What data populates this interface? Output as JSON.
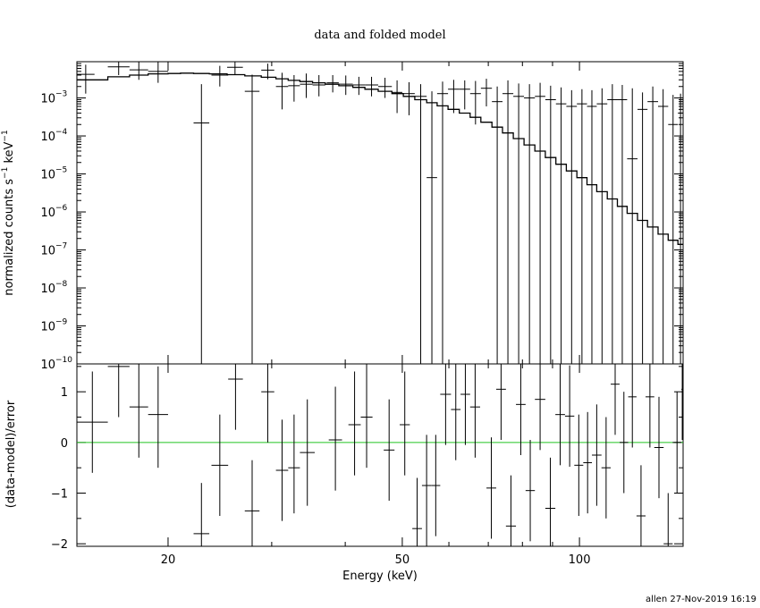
{
  "chart_data": [
    {
      "type": "scatter",
      "title": "data and folded model",
      "ylabel": "normalized counts s^-1 keV^-1",
      "yscale": "log",
      "xscale": "log",
      "xlim": [
        14.0,
        150.0
      ],
      "ylim": [
        1e-10,
        0.009
      ],
      "y_ticks": [
        {
          "value": 1e-10,
          "label": "10",
          "exp": "−10"
        },
        {
          "value": 1e-09,
          "label": "10",
          "exp": "−9"
        },
        {
          "value": 1e-08,
          "label": "10",
          "exp": "−8"
        },
        {
          "value": 1e-07,
          "label": "10",
          "exp": "−7"
        },
        {
          "value": 1e-06,
          "label": "10",
          "exp": "−6"
        },
        {
          "value": 1e-05,
          "label": "10",
          "exp": "−5"
        },
        {
          "value": 0.0001,
          "label": "10",
          "exp": "−4"
        },
        {
          "value": 0.001,
          "label": "10",
          "exp": "−3"
        }
      ],
      "series": [
        {
          "kind": "data_with_errors",
          "points": [
            {
              "x0": 14.0,
              "x1": 15.0,
              "y": 0.0042,
              "ylo": 0.0013,
              "yhi": 0.0075
            },
            {
              "x0": 15.8,
              "x1": 17.2,
              "y": 0.0066,
              "ylo": 0.004,
              "yhi": 0.009
            },
            {
              "x0": 17.2,
              "x1": 18.5,
              "y": 0.0055,
              "ylo": 0.003,
              "yhi": 0.009
            },
            {
              "x0": 18.5,
              "x1": 20.0,
              "y": 0.005,
              "ylo": 0.0025,
              "yhi": 0.009
            },
            {
              "x0": 22.1,
              "x1": 23.5,
              "y": 0.00022,
              "ylo": 1e-10,
              "yhi": 0.0023
            },
            {
              "x0": 23.7,
              "x1": 25.3,
              "y": 0.004,
              "ylo": 0.002,
              "yhi": 0.007
            },
            {
              "x0": 25.2,
              "x1": 26.8,
              "y": 0.0064,
              "ylo": 0.004,
              "yhi": 0.009
            },
            {
              "x0": 27.0,
              "x1": 28.6,
              "y": 0.0015,
              "ylo": 1e-10,
              "yhi": 0.0041
            },
            {
              "x0": 28.8,
              "x1": 30.3,
              "y": 0.0054,
              "ylo": 0.0031,
              "yhi": 0.008
            },
            {
              "x0": 30.5,
              "x1": 32.0,
              "y": 0.002,
              "ylo": 0.0005,
              "yhi": 0.0046
            },
            {
              "x0": 32.0,
              "x1": 33.5,
              "y": 0.0021,
              "ylo": 0.0008,
              "yhi": 0.004
            },
            {
              "x0": 33.5,
              "x1": 35.2,
              "y": 0.0023,
              "ylo": 0.001,
              "yhi": 0.0044
            },
            {
              "x0": 35.2,
              "x1": 37.0,
              "y": 0.0022,
              "ylo": 0.0011,
              "yhi": 0.004
            },
            {
              "x0": 37.2,
              "x1": 39.0,
              "y": 0.0025,
              "ylo": 0.0014,
              "yhi": 0.004
            },
            {
              "x0": 39.0,
              "x1": 41.2,
              "y": 0.0023,
              "ylo": 0.0012,
              "yhi": 0.0039
            },
            {
              "x0": 41.2,
              "x1": 43.2,
              "y": 0.0022,
              "ylo": 0.0012,
              "yhi": 0.0036
            },
            {
              "x0": 43.2,
              "x1": 45.5,
              "y": 0.0022,
              "ylo": 0.0011,
              "yhi": 0.0036
            },
            {
              "x0": 45.5,
              "x1": 48.0,
              "y": 0.002,
              "ylo": 0.001,
              "yhi": 0.0034
            },
            {
              "x0": 48.0,
              "x1": 50.0,
              "y": 0.0014,
              "ylo": 0.0004,
              "yhi": 0.0029
            },
            {
              "x0": 50.2,
              "x1": 52.5,
              "y": 0.0013,
              "ylo": 0.00035,
              "yhi": 0.0026
            },
            {
              "x0": 52.5,
              "x1": 55.0,
              "y": 0.0011,
              "ylo": 1e-10,
              "yhi": 0.0023
            },
            {
              "x0": 55.0,
              "x1": 57.3,
              "y": 8e-06,
              "ylo": 1e-10,
              "yhi": 0.0015
            },
            {
              "x0": 57.3,
              "x1": 59.8,
              "y": 0.0013,
              "ylo": 1e-10,
              "yhi": 0.0027
            },
            {
              "x0": 59.8,
              "x1": 62.5,
              "y": 0.0017,
              "ylo": 0.0004,
              "yhi": 0.003
            },
            {
              "x0": 62.5,
              "x1": 65.2,
              "y": 0.0017,
              "ylo": 0.0005,
              "yhi": 0.0029
            },
            {
              "x0": 65.2,
              "x1": 68.0,
              "y": 0.0013,
              "ylo": 0.0002,
              "yhi": 0.0028
            },
            {
              "x0": 68.0,
              "x1": 71.0,
              "y": 0.0018,
              "ylo": 0.0006,
              "yhi": 0.0032
            },
            {
              "x0": 71.0,
              "x1": 74.0,
              "y": 0.0008,
              "ylo": 1e-10,
              "yhi": 0.002
            },
            {
              "x0": 74.0,
              "x1": 77.2,
              "y": 0.0013,
              "ylo": 1e-10,
              "yhi": 0.0029
            },
            {
              "x0": 77.2,
              "x1": 80.5,
              "y": 0.0011,
              "ylo": 1e-10,
              "yhi": 0.0024
            },
            {
              "x0": 80.5,
              "x1": 84.0,
              "y": 0.001,
              "ylo": 1e-10,
              "yhi": 0.0023
            },
            {
              "x0": 84.0,
              "x1": 87.5,
              "y": 0.0011,
              "ylo": 1e-10,
              "yhi": 0.0025
            },
            {
              "x0": 87.5,
              "x1": 91.2,
              "y": 0.0009,
              "ylo": 1e-10,
              "yhi": 0.0021
            },
            {
              "x0": 91.2,
              "x1": 95.0,
              "y": 0.0007,
              "ylo": 1e-10,
              "yhi": 0.0019
            },
            {
              "x0": 95.0,
              "x1": 99.0,
              "y": 0.0006,
              "ylo": 1e-10,
              "yhi": 0.0016
            },
            {
              "x0": 99.0,
              "x1": 103.0,
              "y": 0.0007,
              "ylo": 1e-10,
              "yhi": 0.0017
            },
            {
              "x0": 103.0,
              "x1": 107.0,
              "y": 0.0006,
              "ylo": 1e-10,
              "yhi": 0.0016
            },
            {
              "x0": 107.0,
              "x1": 111.5,
              "y": 0.0007,
              "ylo": 1e-10,
              "yhi": 0.0018
            },
            {
              "x0": 111.5,
              "x1": 116.0,
              "y": 0.0009,
              "ylo": 1e-10,
              "yhi": 0.0023
            },
            {
              "x0": 116.0,
              "x1": 120.5,
              "y": 0.0009,
              "ylo": 1e-10,
              "yhi": 0.0022
            },
            {
              "x0": 120.5,
              "x1": 125.5,
              "y": 2.5e-05,
              "ylo": 1e-10,
              "yhi": 0.0018
            },
            {
              "x0": 125.5,
              "x1": 130.5,
              "y": 0.0005,
              "ylo": 1e-10,
              "yhi": 0.0014
            },
            {
              "x0": 130.5,
              "x1": 136.0,
              "y": 0.0008,
              "ylo": 1e-10,
              "yhi": 0.002
            },
            {
              "x0": 136.0,
              "x1": 141.5,
              "y": 0.0006,
              "ylo": 1e-10,
              "yhi": 0.0017
            },
            {
              "x0": 141.5,
              "x1": 147.0,
              "y": 0.0002,
              "ylo": 1e-10,
              "yhi": 0.0012
            },
            {
              "x0": 147.0,
              "x1": 150.0,
              "y": 0.0004,
              "ylo": 1e-10,
              "yhi": 0.0013
            }
          ]
        },
        {
          "kind": "model_step",
          "edges": [
            14.0,
            15.8,
            17.2,
            18.5,
            20.0,
            21.0,
            22.1,
            23.5,
            25.2,
            27.0,
            28.8,
            30.5,
            32.0,
            33.5,
            35.2,
            37.0,
            39.0,
            41.2,
            43.2,
            45.5,
            48.0,
            50.2,
            52.5,
            55.0,
            57.3,
            59.8,
            62.5,
            65.2,
            68.0,
            71.0,
            74.0,
            77.2,
            80.5,
            84.0,
            87.5,
            91.2,
            95.0,
            99.0,
            103.0,
            107.0,
            111.5,
            116.0,
            120.5,
            125.5,
            130.5,
            136.0,
            141.5,
            147.0,
            150.0
          ],
          "values": [
            0.003,
            0.0036,
            0.004,
            0.0043,
            0.0044,
            0.0045,
            0.0044,
            0.0043,
            0.0041,
            0.0038,
            0.0035,
            0.0032,
            0.0029,
            0.0027,
            0.0025,
            0.0023,
            0.0021,
            0.0019,
            0.0017,
            0.0015,
            0.0013,
            0.0011,
            0.0009,
            0.00075,
            0.00062,
            0.0005,
            0.0004,
            0.00031,
            0.00023,
            0.00017,
            0.00012,
            8.5e-05,
            5.8e-05,
            4e-05,
            2.7e-05,
            1.8e-05,
            1.2e-05,
            8e-06,
            5.2e-06,
            3.4e-06,
            2.2e-06,
            1.4e-06,
            9.2e-07,
            6e-07,
            4e-07,
            2.6e-07,
            1.8e-07,
            1.4e-07
          ]
        }
      ]
    },
    {
      "type": "scatter",
      "ylabel": "(data-model)/error",
      "xlabel": "Energy (keV)",
      "xscale": "log",
      "xlim": [
        14.0,
        150.0
      ],
      "ylim": [
        -2.05,
        1.55
      ],
      "x_ticks": [
        {
          "value": 20,
          "label": "20"
        },
        {
          "value": 50,
          "label": "50"
        },
        {
          "value": 100,
          "label": "100"
        }
      ],
      "y_ticks": [
        {
          "value": 1,
          "label": "1"
        },
        {
          "value": 0,
          "label": "0"
        },
        {
          "value": -1,
          "label": "−1"
        },
        {
          "value": -2,
          "label": "−2"
        }
      ],
      "zero_line_color": "#22c422",
      "series": [
        {
          "kind": "residuals",
          "points": [
            {
              "x0": 14.0,
              "x1": 15.8,
              "y": 0.4,
              "ylo": -0.6,
              "yhi": 1.4
            },
            {
              "x0": 15.8,
              "x1": 17.2,
              "y": 1.5,
              "ylo": 0.5,
              "yhi": 1.55
            },
            {
              "x0": 17.2,
              "x1": 18.5,
              "y": 0.7,
              "ylo": -0.3,
              "yhi": 1.55
            },
            {
              "x0": 18.5,
              "x1": 20.0,
              "y": 0.55,
              "ylo": -0.5,
              "yhi": 1.5
            },
            {
              "x0": 22.1,
              "x1": 23.5,
              "y": -1.8,
              "ylo": -2.05,
              "yhi": -0.8
            },
            {
              "x0": 23.7,
              "x1": 25.3,
              "y": -0.45,
              "ylo": -1.45,
              "yhi": 0.55
            },
            {
              "x0": 25.3,
              "x1": 26.8,
              "y": 1.25,
              "ylo": 0.25,
              "yhi": 1.55
            },
            {
              "x0": 27.0,
              "x1": 28.6,
              "y": -1.35,
              "ylo": -2.05,
              "yhi": -0.35
            },
            {
              "x0": 28.8,
              "x1": 30.3,
              "y": 1.0,
              "ylo": 0.0,
              "yhi": 1.55
            },
            {
              "x0": 30.5,
              "x1": 32.0,
              "y": -0.55,
              "ylo": -1.55,
              "yhi": 0.45
            },
            {
              "x0": 32.0,
              "x1": 33.5,
              "y": -0.5,
              "ylo": -1.4,
              "yhi": 0.55
            },
            {
              "x0": 33.5,
              "x1": 35.5,
              "y": -0.2,
              "ylo": -1.25,
              "yhi": 0.85
            },
            {
              "x0": 37.5,
              "x1": 39.5,
              "y": 0.05,
              "ylo": -0.95,
              "yhi": 1.1
            },
            {
              "x0": 40.5,
              "x1": 42.5,
              "y": 0.35,
              "ylo": -0.65,
              "yhi": 1.4
            },
            {
              "x0": 42.5,
              "x1": 44.5,
              "y": 0.5,
              "ylo": -0.5,
              "yhi": 1.55
            },
            {
              "x0": 46.5,
              "x1": 48.5,
              "y": -0.15,
              "ylo": -1.15,
              "yhi": 0.85
            },
            {
              "x0": 49.5,
              "x1": 51.5,
              "y": 0.35,
              "ylo": -0.65,
              "yhi": 1.4
            },
            {
              "x0": 52.0,
              "x1": 54.0,
              "y": -1.7,
              "ylo": -2.05,
              "yhi": -0.7
            },
            {
              "x0": 54.0,
              "x1": 56.0,
              "y": -0.85,
              "ylo": -2.05,
              "yhi": 0.15
            },
            {
              "x0": 56.0,
              "x1": 58.0,
              "y": -0.85,
              "ylo": -1.85,
              "yhi": 0.15
            },
            {
              "x0": 58.0,
              "x1": 60.5,
              "y": 0.95,
              "ylo": -0.05,
              "yhi": 1.55
            },
            {
              "x0": 60.5,
              "x1": 62.8,
              "y": 0.65,
              "ylo": -0.35,
              "yhi": 1.55
            },
            {
              "x0": 62.8,
              "x1": 65.2,
              "y": 0.95,
              "ylo": -0.05,
              "yhi": 1.55
            },
            {
              "x0": 65.2,
              "x1": 67.8,
              "y": 0.7,
              "ylo": -0.3,
              "yhi": 1.55
            },
            {
              "x0": 69.5,
              "x1": 72.2,
              "y": -0.9,
              "ylo": -1.9,
              "yhi": 0.1
            },
            {
              "x0": 72.2,
              "x1": 75.0,
              "y": 1.05,
              "ylo": 0.05,
              "yhi": 1.55
            },
            {
              "x0": 75.0,
              "x1": 78.0,
              "y": -1.65,
              "ylo": -2.05,
              "yhi": -0.65
            },
            {
              "x0": 78.0,
              "x1": 81.0,
              "y": 0.75,
              "ylo": -0.25,
              "yhi": 1.55
            },
            {
              "x0": 81.0,
              "x1": 84.0,
              "y": -0.95,
              "ylo": -1.95,
              "yhi": 0.05
            },
            {
              "x0": 84.0,
              "x1": 87.5,
              "y": 0.85,
              "ylo": -0.15,
              "yhi": 1.55
            },
            {
              "x0": 87.5,
              "x1": 91.0,
              "y": -1.3,
              "ylo": -2.05,
              "yhi": -0.3
            },
            {
              "x0": 91.0,
              "x1": 94.5,
              "y": 0.55,
              "ylo": -0.45,
              "yhi": 1.55
            },
            {
              "x0": 94.5,
              "x1": 98.0,
              "y": 0.52,
              "ylo": -0.48,
              "yhi": 1.52
            },
            {
              "x0": 98.0,
              "x1": 101.5,
              "y": -0.45,
              "ylo": -1.45,
              "yhi": 0.55
            },
            {
              "x0": 101.5,
              "x1": 105.0,
              "y": -0.4,
              "ylo": -1.4,
              "yhi": 0.6
            },
            {
              "x0": 105.0,
              "x1": 109.0,
              "y": -0.25,
              "ylo": -1.25,
              "yhi": 0.75
            },
            {
              "x0": 109.0,
              "x1": 113.0,
              "y": -0.5,
              "ylo": -1.5,
              "yhi": 0.5
            },
            {
              "x0": 113.0,
              "x1": 117.0,
              "y": 1.15,
              "ylo": 0.15,
              "yhi": 1.55
            },
            {
              "x0": 117.0,
              "x1": 121.0,
              "y": 0.0,
              "ylo": -1.0,
              "yhi": 1.0
            },
            {
              "x0": 121.0,
              "x1": 125.0,
              "y": 0.9,
              "ylo": -0.1,
              "yhi": 1.55
            },
            {
              "x0": 125.0,
              "x1": 129.5,
              "y": -1.45,
              "ylo": -2.05,
              "yhi": -0.45
            },
            {
              "x0": 129.5,
              "x1": 134.0,
              "y": 0.9,
              "ylo": -0.1,
              "yhi": 1.55
            },
            {
              "x0": 134.0,
              "x1": 139.0,
              "y": -0.1,
              "ylo": -1.1,
              "yhi": 0.9
            },
            {
              "x0": 139.0,
              "x1": 144.0,
              "y": -2.0,
              "ylo": -2.05,
              "yhi": -1.0
            },
            {
              "x0": 144.0,
              "x1": 149.0,
              "y": 0.0,
              "ylo": -1.0,
              "yhi": 1.0
            },
            {
              "x0": 149.0,
              "x1": 150.0,
              "y": 1.05,
              "ylo": 0.05,
              "yhi": 1.55
            }
          ]
        }
      ]
    }
  ],
  "footer": "allen 27-Nov-2019 16:19"
}
